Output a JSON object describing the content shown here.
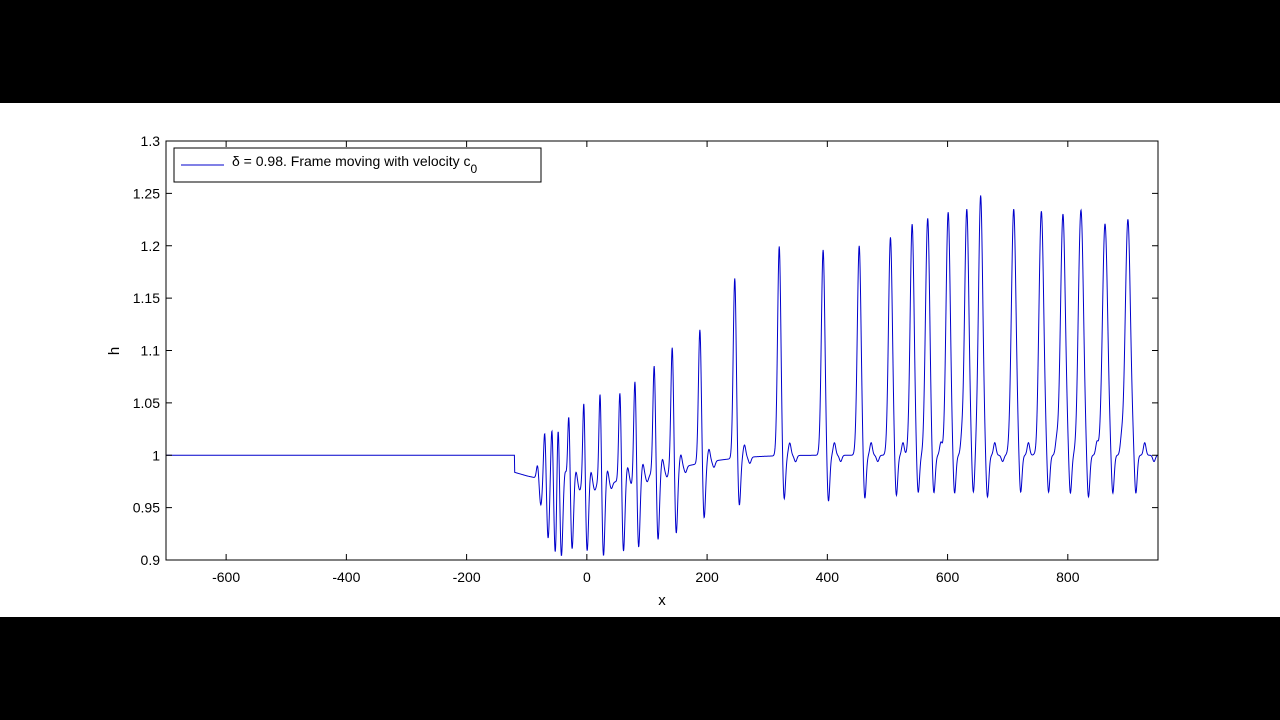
{
  "chart_data": {
    "type": "line",
    "title": "",
    "xlabel": "x",
    "ylabel": "h",
    "xlim": [
      -700,
      950
    ],
    "ylim": [
      0.9,
      1.3
    ],
    "xticks": [
      -600,
      -400,
      -200,
      0,
      200,
      400,
      600,
      800
    ],
    "yticks": [
      0.9,
      0.95,
      1,
      1.05,
      1.1,
      1.15,
      1.2,
      1.25,
      1.3
    ],
    "ytick_labels": [
      "0.9",
      "0.95",
      "1",
      "1.05",
      "1.1",
      "1.15",
      "1.2",
      "1.25",
      "1.3"
    ],
    "grid": false,
    "legend_position": "top-left",
    "series": [
      {
        "name": "δ = 0.98.   Frame moving with velocity c",
        "name_subscript": "0",
        "color": "#0000cc",
        "baseline": 1.0,
        "oscillation_start_x": -120,
        "peaks": [
          {
            "x": -82,
            "h": 1.013,
            "trough": 0.972
          },
          {
            "x": -70,
            "h": 1.035,
            "trough": 0.944
          },
          {
            "x": -58,
            "h": 1.04,
            "trough": 0.928
          },
          {
            "x": -48,
            "h": 1.052,
            "trough": 0.922
          },
          {
            "x": -30,
            "h": 1.072,
            "trough": 0.93
          },
          {
            "x": -5,
            "h": 1.08,
            "trough": 0.928
          },
          {
            "x": 22,
            "h": 1.088,
            "trough": 0.922
          },
          {
            "x": 55,
            "h": 1.086,
            "trough": 0.924
          },
          {
            "x": 80,
            "h": 1.094,
            "trough": 0.925
          },
          {
            "x": 112,
            "h": 1.104,
            "trough": 0.928
          },
          {
            "x": 142,
            "h": 1.117,
            "trough": 0.93
          },
          {
            "x": 188,
            "h": 1.128,
            "trough": 0.94
          },
          {
            "x": 246,
            "h": 1.172,
            "trough": 0.948
          },
          {
            "x": 320,
            "h": 1.2,
            "trough": 0.952
          },
          {
            "x": 393,
            "h": 1.196,
            "trough": 0.949
          },
          {
            "x": 453,
            "h": 1.2,
            "trough": 0.952
          },
          {
            "x": 505,
            "h": 1.208,
            "trough": 0.955
          },
          {
            "x": 541,
            "h": 1.222,
            "trough": 0.958
          },
          {
            "x": 567,
            "h": 1.225,
            "trough": 0.96
          },
          {
            "x": 601,
            "h": 1.238,
            "trough": 0.957
          },
          {
            "x": 632,
            "h": 1.236,
            "trough": 0.957
          },
          {
            "x": 655,
            "h": 1.236,
            "trough": 0.958
          },
          {
            "x": 710,
            "h": 1.235,
            "trough": 0.958
          },
          {
            "x": 756,
            "h": 1.233,
            "trough": 0.958
          },
          {
            "x": 792,
            "h": 1.232,
            "trough": 0.957
          },
          {
            "x": 822,
            "h": 1.232,
            "trough": 0.957
          },
          {
            "x": 862,
            "h": 1.226,
            "trough": 0.957
          },
          {
            "x": 900,
            "h": 1.226,
            "trough": 0.957
          }
        ]
      }
    ]
  }
}
